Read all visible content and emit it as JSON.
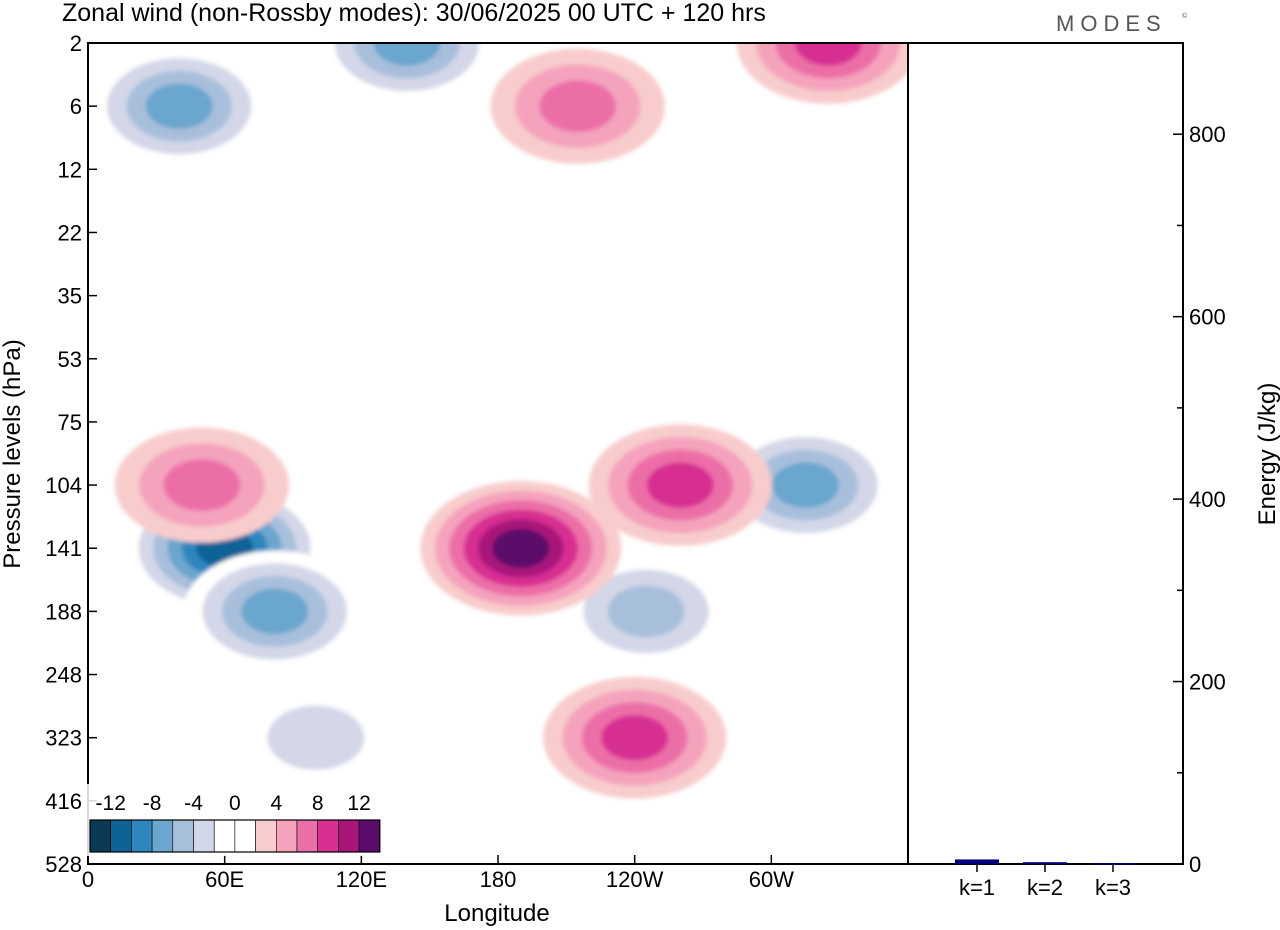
{
  "header": {
    "title": "Zonal wind (non-Rossby modes):  30/06/2025  00 UTC  + 120 hrs",
    "brand": "MODES",
    "brand_mark": "©"
  },
  "chart_data": [
    {
      "type": "heatmap",
      "xlabel": "Longitude",
      "ylabel": "Pressure levels (hPa)",
      "x_ticks": [
        "0",
        "60E",
        "120E",
        "180",
        "120W",
        "60W"
      ],
      "x_tick_degrees": [
        0,
        60,
        120,
        180,
        240,
        300
      ],
      "xlim": [
        0,
        360
      ],
      "y_ticks": [
        "2",
        "6",
        "12",
        "22",
        "35",
        "53",
        "75",
        "104",
        "141",
        "188",
        "248",
        "323",
        "416",
        "528"
      ],
      "y_order": "top-to-bottom",
      "colorbar": {
        "tick_labels": [
          "-12",
          "-8",
          "-4",
          "0",
          "4",
          "8",
          "12"
        ],
        "colors": [
          "#0a3a56",
          "#0f6296",
          "#2e86bf",
          "#6aa6cd",
          "#a8bfdc",
          "#d3d7e8",
          "#ffffff",
          "#ffffff",
          "#f8cccc",
          "#f5a3bd",
          "#ec6ea7",
          "#d72f92",
          "#a8167a",
          "#5b0b6b"
        ]
      },
      "features": [
        {
          "sign": "negative",
          "lon": 60,
          "level": "141",
          "min": -12
        },
        {
          "sign": "negative",
          "lon": 82,
          "level": "188",
          "min": -8
        },
        {
          "sign": "negative",
          "lon": 100,
          "level": "323",
          "min": -4
        },
        {
          "sign": "negative",
          "lon": 315,
          "level": "104",
          "min": -8
        },
        {
          "sign": "negative",
          "lon": 40,
          "level": "6",
          "min": -8
        },
        {
          "sign": "negative",
          "lon": 140,
          "level": "2",
          "min": -8
        },
        {
          "sign": "negative",
          "lon": 245,
          "level": "188",
          "min": -6
        },
        {
          "sign": "positive",
          "lon": 190,
          "level": "141",
          "min": 12
        },
        {
          "sign": "positive",
          "lon": 260,
          "level": "104",
          "min": 8
        },
        {
          "sign": "positive",
          "lon": 240,
          "level": "323",
          "min": 8
        },
        {
          "sign": "positive",
          "lon": 50,
          "level": "104",
          "min": 6
        },
        {
          "sign": "positive",
          "lon": 325,
          "level": "2",
          "min": 8
        },
        {
          "sign": "positive",
          "lon": 215,
          "level": "6",
          "min": 6
        }
      ]
    },
    {
      "type": "bar",
      "categories": [
        "k=1",
        "k=2",
        "k=3"
      ],
      "values": [
        5,
        2,
        1
      ],
      "ylabel": "Energy (J/kg)",
      "y_ticks": [
        "0",
        "200",
        "400",
        "600",
        "800"
      ],
      "ylim": [
        0,
        900
      ],
      "bar_color": "#00007a"
    }
  ]
}
